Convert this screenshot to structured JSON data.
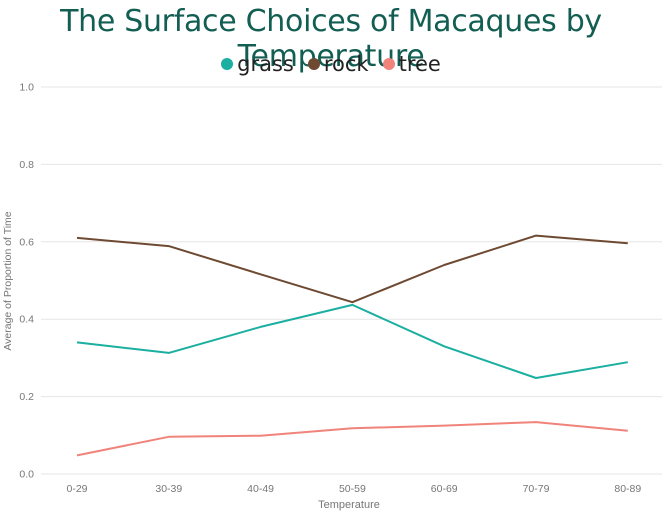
{
  "chart_data": {
    "type": "line",
    "title": "The Surface Choices of Macaques by Temperature",
    "xlabel": "Temperature",
    "ylabel": "Average of Proportion of Time",
    "categories": [
      "0-29",
      "30-39",
      "40-49",
      "50-59",
      "60-69",
      "70-79",
      "80-89"
    ],
    "ylim": [
      0,
      1
    ],
    "yticks": [
      "0.0",
      "0.2",
      "0.4",
      "0.6",
      "0.8",
      "1.0"
    ],
    "grid": true,
    "legend_position": "top-center",
    "series": [
      {
        "name": "grass",
        "color": "#1aafa0",
        "values": [
          0.34,
          0.313,
          0.38,
          0.437,
          0.33,
          0.248,
          0.289
        ]
      },
      {
        "name": "rock",
        "color": "#6e4a32",
        "values": [
          0.61,
          0.589,
          0.516,
          0.444,
          0.54,
          0.616,
          0.596
        ]
      },
      {
        "name": "tree",
        "color": "#f0837a",
        "values": [
          0.048,
          0.096,
          0.099,
          0.118,
          0.125,
          0.134,
          0.112
        ]
      }
    ]
  }
}
